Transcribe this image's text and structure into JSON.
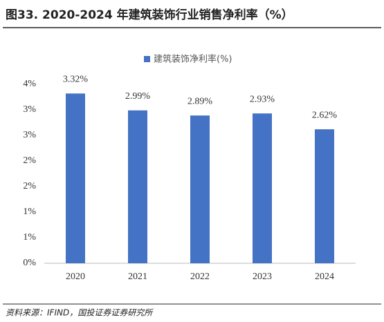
{
  "chart_data": {
    "type": "bar",
    "title": "图33. 2020-2024 年建筑装饰行业销售净利率（%）",
    "source": "资料来源：IFIND，国投证券证券研究所",
    "categories": [
      "2020",
      "2021",
      "2022",
      "2023",
      "2024"
    ],
    "series": [
      {
        "name": "建筑装饰净利率(%)",
        "color": "#4472c4",
        "values": [
          3.32,
          2.99,
          2.89,
          2.93,
          2.62
        ],
        "value_labels": [
          "3.32%",
          "2.99%",
          "2.89%",
          "2.93%",
          "2.62%"
        ]
      }
    ],
    "ylim": [
      0,
      3.5
    ],
    "yticks": [
      {
        "value": 0,
        "label": "0%"
      },
      {
        "value": 0.5,
        "label": "1%"
      },
      {
        "value": 1,
        "label": "1%"
      },
      {
        "value": 1.5,
        "label": "2%"
      },
      {
        "value": 2,
        "label": "2%"
      },
      {
        "value": 2.5,
        "label": "3%"
      },
      {
        "value": 3,
        "label": "3%"
      },
      {
        "value": 3.5,
        "label": "4%"
      }
    ],
    "grid": false,
    "legend": "top"
  }
}
